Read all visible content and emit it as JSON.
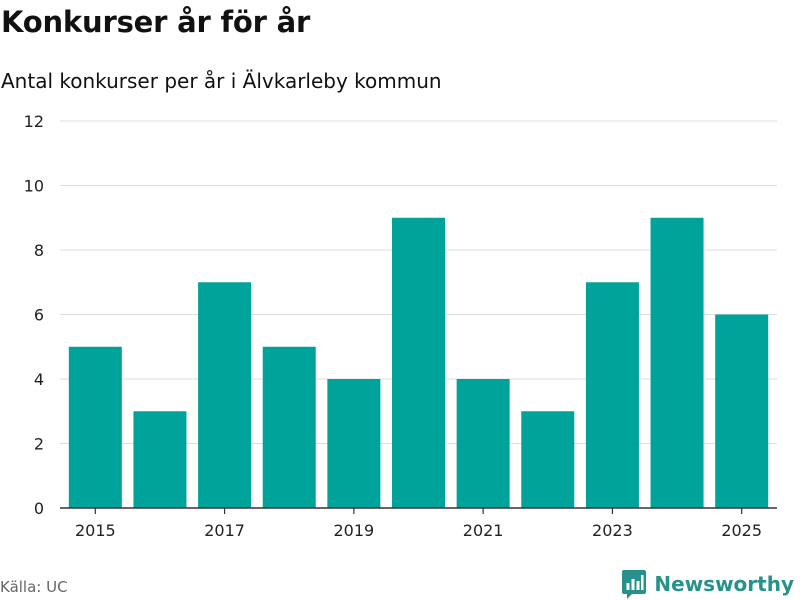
{
  "header": {
    "title": "Konkurser år för år",
    "subtitle": "Antal konkurser per år i Älvkarleby kommun"
  },
  "footer": {
    "source": "Källa: UC",
    "brand": "Newsworthy",
    "brand_icon": "newsworthy-logo-icon"
  },
  "colors": {
    "bar": "#00a39a",
    "gridline": "#dedede",
    "axis": "#333333",
    "brand": "#27928b"
  },
  "chart_data": {
    "type": "bar",
    "x": [
      2015,
      2016,
      2017,
      2018,
      2019,
      2020,
      2021,
      2022,
      2023,
      2024,
      2025
    ],
    "values": [
      5,
      3,
      7,
      5,
      4,
      9,
      4,
      3,
      7,
      9,
      6
    ],
    "x_tick_labels": [
      "2015",
      "2017",
      "2019",
      "2021",
      "2023",
      "2025"
    ],
    "y_tick_labels": [
      "0",
      "2",
      "4",
      "6",
      "8",
      "10",
      "12"
    ],
    "ylim": [
      0,
      12
    ],
    "grid": true,
    "legend": "none"
  }
}
